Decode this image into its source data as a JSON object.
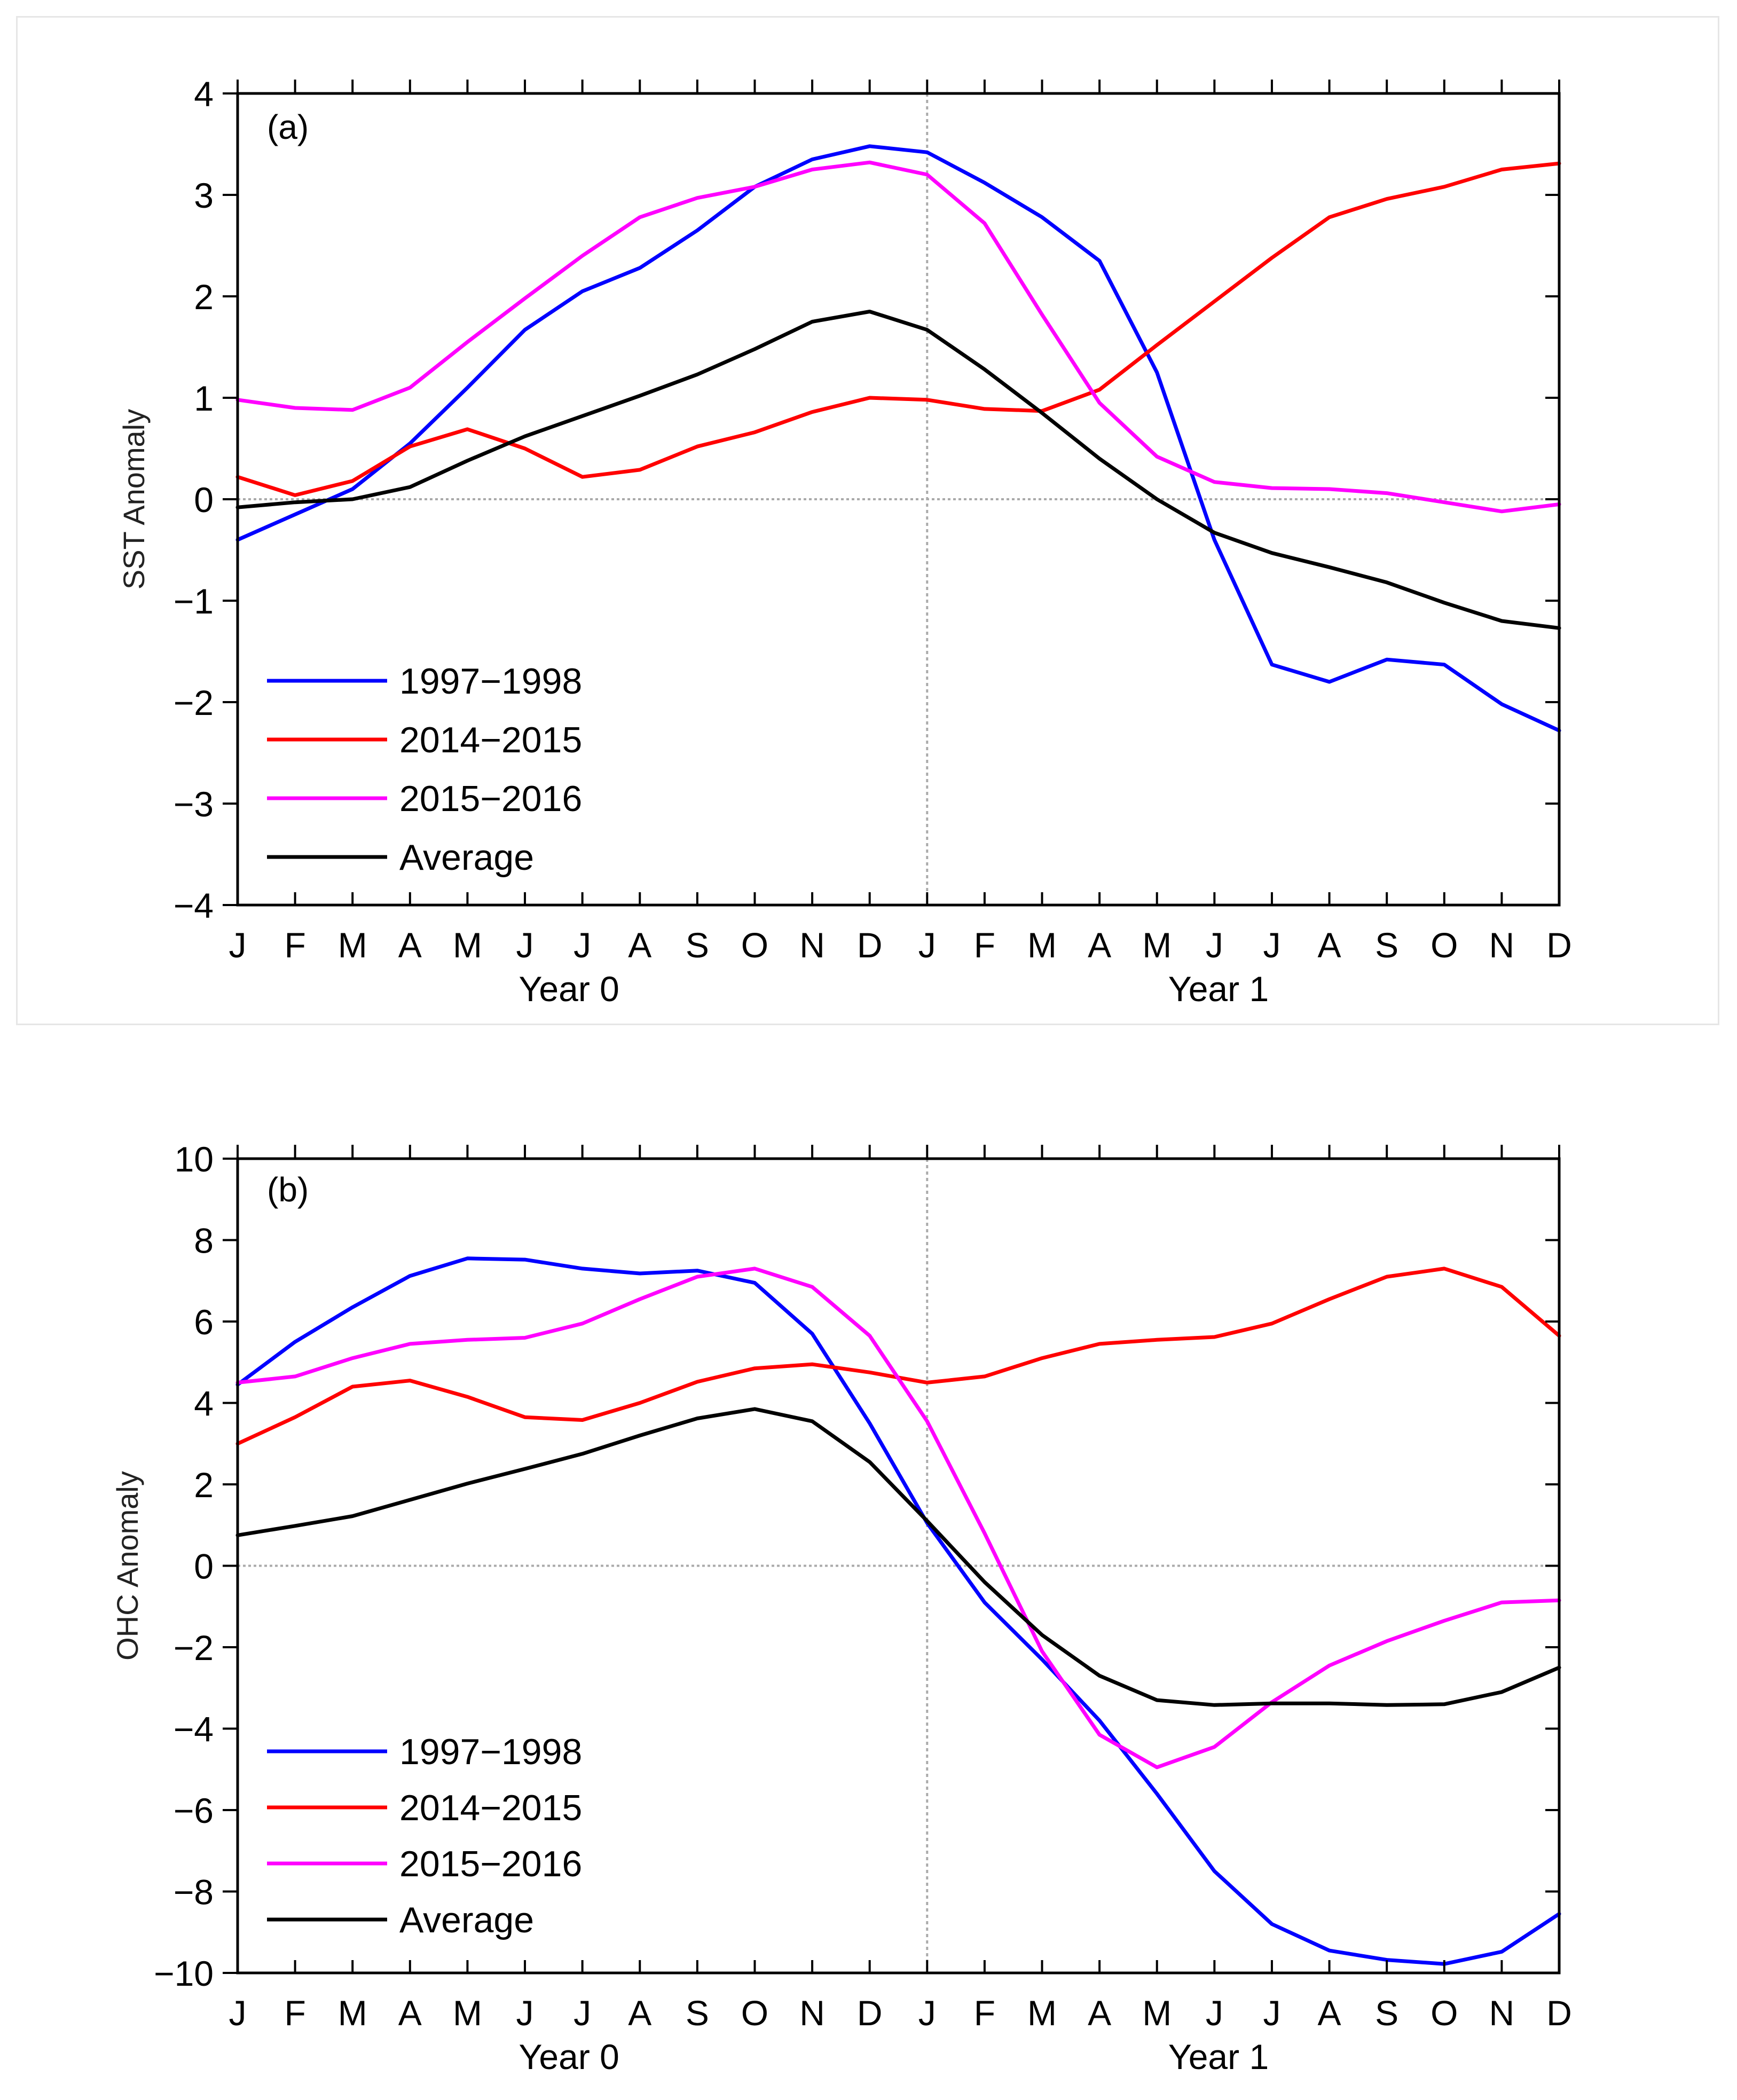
{
  "months": [
    "J",
    "F",
    "M",
    "A",
    "M",
    "J",
    "J",
    "A",
    "S",
    "O",
    "N",
    "D",
    "J",
    "F",
    "M",
    "A",
    "M",
    "J",
    "J",
    "A",
    "S",
    "O",
    "N",
    "D"
  ],
  "year_labels": [
    "Year 0",
    "Year 1"
  ],
  "chart_data": [
    {
      "type": "line",
      "panel_label": "(a)",
      "ylabel": "SST Anomaly",
      "ylim": [
        -4,
        4
      ],
      "yticks": [
        -4,
        -3,
        -2,
        -1,
        0,
        1,
        2,
        3,
        4
      ],
      "ytick_labels": [
        "−4",
        "−3",
        "−2",
        "−1",
        "0",
        "1",
        "2",
        "3",
        "4"
      ],
      "reference_x_index": 12,
      "reference_y": 0,
      "legend_position": "bottom-left",
      "series": [
        {
          "name": "1997−1998",
          "color": "#0000ff",
          "values": [
            -0.4,
            -0.15,
            0.1,
            0.55,
            1.1,
            1.67,
            2.05,
            2.28,
            2.65,
            3.08,
            3.35,
            3.48,
            3.42,
            3.12,
            2.78,
            2.35,
            1.25,
            -0.4,
            -1.63,
            -1.8,
            -1.58,
            -1.63,
            -2.02,
            -2.28
          ]
        },
        {
          "name": "2014−2015",
          "color": "#ff0000",
          "values": [
            0.22,
            0.04,
            0.18,
            0.52,
            0.69,
            0.5,
            0.22,
            0.29,
            0.52,
            0.66,
            0.86,
            1.0,
            0.98,
            0.89,
            0.87,
            1.08,
            1.52,
            1.95,
            2.38,
            2.78,
            2.96,
            3.08,
            3.25,
            3.31
          ]
        },
        {
          "name": "2015−2016",
          "color": "#ff00ff",
          "values": [
            0.98,
            0.9,
            0.88,
            1.1,
            1.55,
            1.98,
            2.4,
            2.78,
            2.97,
            3.08,
            3.25,
            3.32,
            3.2,
            2.72,
            1.82,
            0.95,
            0.42,
            0.17,
            0.11,
            0.1,
            0.06,
            -0.03,
            -0.12,
            -0.05
          ]
        },
        {
          "name": "Average",
          "color": "#000000",
          "values": [
            -0.08,
            -0.03,
            0.0,
            0.12,
            0.38,
            0.62,
            0.82,
            1.02,
            1.23,
            1.48,
            1.75,
            1.85,
            1.67,
            1.28,
            0.85,
            0.4,
            0.0,
            -0.33,
            -0.53,
            -0.67,
            -0.82,
            -1.02,
            -1.2,
            -1.27
          ]
        }
      ]
    },
    {
      "type": "line",
      "panel_label": "(b)",
      "ylabel": "OHC Anomaly",
      "ylim": [
        -10,
        10
      ],
      "yticks": [
        -10,
        -8,
        -6,
        -4,
        -2,
        0,
        2,
        4,
        6,
        8,
        10
      ],
      "ytick_labels": [
        "−10",
        "−8",
        "−6",
        "−4",
        "−2",
        "0",
        "2",
        "4",
        "6",
        "8",
        "10"
      ],
      "reference_x_index": 12,
      "reference_y": 0,
      "legend_position": "bottom-left",
      "series": [
        {
          "name": "1997−1998",
          "color": "#0000ff",
          "values": [
            4.45,
            5.5,
            6.35,
            7.12,
            7.55,
            7.52,
            7.3,
            7.18,
            7.25,
            6.95,
            5.7,
            3.5,
            1.05,
            -0.9,
            -2.3,
            -3.8,
            -5.6,
            -7.5,
            -8.8,
            -9.45,
            -9.68,
            -9.78,
            -9.48,
            -8.55
          ]
        },
        {
          "name": "2014−2015",
          "color": "#ff0000",
          "values": [
            3.0,
            3.65,
            4.4,
            4.55,
            4.15,
            3.65,
            3.58,
            4.0,
            4.52,
            4.85,
            4.95,
            4.75,
            4.5,
            4.65,
            5.1,
            5.45,
            5.55,
            5.62,
            5.95,
            6.55,
            7.1,
            7.3,
            6.85,
            5.65
          ]
        },
        {
          "name": "2015−2016",
          "color": "#ff00ff",
          "values": [
            4.5,
            4.65,
            5.1,
            5.45,
            5.55,
            5.6,
            5.95,
            6.55,
            7.1,
            7.3,
            6.85,
            5.65,
            3.55,
            0.8,
            -2.1,
            -4.15,
            -4.95,
            -4.45,
            -3.35,
            -2.45,
            -1.85,
            -1.35,
            -0.9,
            -0.85
          ]
        },
        {
          "name": "Average",
          "color": "#000000",
          "values": [
            0.75,
            0.98,
            1.22,
            1.62,
            2.02,
            2.38,
            2.75,
            3.2,
            3.62,
            3.85,
            3.55,
            2.55,
            1.1,
            -0.4,
            -1.7,
            -2.7,
            -3.3,
            -3.42,
            -3.38,
            -3.38,
            -3.42,
            -3.4,
            -3.1,
            -2.5
          ]
        }
      ]
    }
  ]
}
